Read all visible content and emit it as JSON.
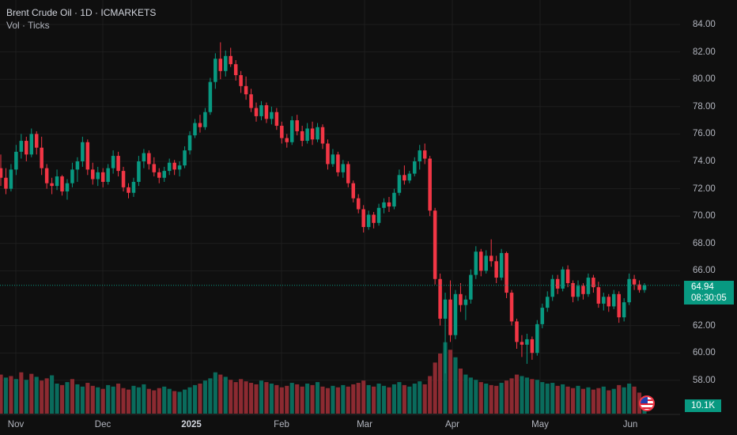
{
  "header": {
    "title": "Brent Crude Oil · 1D · ICMARKETS",
    "volume_label": "Vol · Ticks"
  },
  "price_axis": {
    "labels": [
      "84.00",
      "82.00",
      "80.00",
      "78.00",
      "76.00",
      "74.00",
      "72.00",
      "70.00",
      "68.00",
      "66.00",
      "62.00",
      "60.00",
      "58.00"
    ],
    "last_price": "64.94",
    "countdown": "08:30:05",
    "volume_last": "10.1K"
  },
  "time_axis": {
    "labels": [
      "Nov",
      "Dec",
      "2025",
      "Feb",
      "Mar",
      "Apr",
      "May",
      "Jun"
    ]
  },
  "colors": {
    "up": "#089981",
    "down": "#f23645",
    "background": "#0f0f0f",
    "grid": "#1e1e1e"
  },
  "chart_data": {
    "type": "candlestick",
    "symbol": "Brent Crude Oil",
    "interval": "1D",
    "exchange": "ICMARKETS",
    "ylim": [
      57.5,
      84.5
    ],
    "last_price": 64.94,
    "ohlc": [
      [
        73.5,
        74.5,
        72.2,
        72.8
      ],
      [
        72.8,
        73.5,
        71.6,
        72.0
      ],
      [
        72.0,
        73.8,
        71.8,
        73.4
      ],
      [
        73.4,
        75.2,
        73.0,
        74.7
      ],
      [
        74.7,
        76.0,
        74.2,
        75.5
      ],
      [
        75.5,
        75.8,
        74.0,
        74.5
      ],
      [
        74.5,
        76.4,
        74.3,
        76.0
      ],
      [
        76.0,
        76.2,
        74.5,
        75.0
      ],
      [
        75.0,
        75.8,
        73.0,
        73.5
      ],
      [
        73.5,
        73.8,
        72.0,
        72.4
      ],
      [
        72.4,
        72.8,
        71.6,
        72.2
      ],
      [
        72.2,
        73.4,
        71.9,
        72.9
      ],
      [
        72.9,
        73.0,
        71.5,
        71.8
      ],
      [
        71.8,
        72.7,
        71.2,
        72.4
      ],
      [
        72.4,
        73.9,
        72.1,
        73.4
      ],
      [
        73.4,
        74.3,
        72.5,
        74.0
      ],
      [
        74.0,
        75.8,
        73.6,
        75.4
      ],
      [
        75.4,
        75.6,
        73.0,
        73.4
      ],
      [
        73.4,
        73.9,
        72.3,
        72.7
      ],
      [
        72.7,
        73.6,
        72.2,
        73.2
      ],
      [
        73.2,
        73.5,
        72.1,
        72.5
      ],
      [
        72.5,
        73.8,
        72.3,
        73.5
      ],
      [
        73.5,
        74.8,
        73.1,
        74.4
      ],
      [
        74.4,
        74.7,
        72.9,
        73.3
      ],
      [
        73.3,
        73.6,
        71.8,
        72.1
      ],
      [
        72.1,
        72.4,
        71.3,
        71.7
      ],
      [
        71.7,
        72.8,
        71.4,
        72.5
      ],
      [
        72.5,
        74.4,
        72.2,
        74.0
      ],
      [
        74.0,
        74.9,
        73.5,
        74.6
      ],
      [
        74.6,
        74.8,
        73.4,
        73.8
      ],
      [
        73.8,
        74.3,
        72.9,
        73.2
      ],
      [
        73.2,
        73.5,
        72.4,
        72.8
      ],
      [
        72.8,
        73.6,
        72.5,
        73.3
      ],
      [
        73.3,
        74.2,
        73.0,
        73.9
      ],
      [
        73.9,
        74.1,
        73.0,
        73.4
      ],
      [
        73.4,
        74.0,
        72.9,
        73.7
      ],
      [
        73.7,
        75.1,
        73.5,
        74.8
      ],
      [
        74.8,
        76.2,
        74.5,
        75.9
      ],
      [
        75.9,
        77.1,
        75.7,
        76.8
      ],
      [
        76.8,
        77.4,
        76.1,
        76.5
      ],
      [
        76.5,
        77.9,
        76.3,
        77.6
      ],
      [
        77.6,
        80.1,
        77.4,
        79.8
      ],
      [
        79.8,
        81.9,
        79.3,
        81.5
      ],
      [
        81.5,
        82.7,
        80.0,
        80.6
      ],
      [
        80.6,
        82.1,
        80.2,
        81.7
      ],
      [
        81.7,
        82.3,
        80.9,
        81.1
      ],
      [
        81.1,
        81.4,
        79.9,
        80.3
      ],
      [
        80.3,
        80.6,
        79.0,
        79.5
      ],
      [
        79.5,
        80.2,
        78.5,
        78.9
      ],
      [
        78.9,
        79.3,
        77.6,
        77.9
      ],
      [
        77.9,
        78.3,
        76.9,
        77.3
      ],
      [
        77.3,
        78.4,
        77.0,
        78.1
      ],
      [
        78.1,
        78.3,
        76.8,
        77.1
      ],
      [
        77.1,
        78.0,
        76.7,
        77.6
      ],
      [
        77.6,
        77.9,
        76.3,
        76.6
      ],
      [
        76.6,
        76.9,
        75.3,
        75.7
      ],
      [
        75.7,
        76.0,
        75.0,
        75.4
      ],
      [
        75.4,
        77.3,
        75.2,
        77.0
      ],
      [
        77.0,
        77.4,
        75.9,
        76.2
      ],
      [
        76.2,
        76.6,
        75.1,
        75.5
      ],
      [
        75.5,
        76.8,
        75.3,
        76.4
      ],
      [
        76.4,
        76.9,
        75.2,
        75.6
      ],
      [
        75.6,
        76.8,
        75.4,
        76.5
      ],
      [
        76.5,
        76.7,
        74.9,
        75.3
      ],
      [
        75.3,
        75.6,
        73.4,
        73.8
      ],
      [
        73.8,
        74.9,
        73.6,
        74.5
      ],
      [
        74.5,
        74.7,
        72.9,
        73.2
      ],
      [
        73.2,
        74.1,
        72.8,
        73.8
      ],
      [
        73.8,
        74.0,
        72.1,
        72.4
      ],
      [
        72.4,
        72.6,
        71.0,
        71.3
      ],
      [
        71.3,
        71.6,
        70.2,
        70.5
      ],
      [
        70.5,
        70.8,
        68.8,
        69.2
      ],
      [
        69.2,
        70.4,
        69.0,
        70.1
      ],
      [
        70.1,
        70.3,
        69.1,
        69.5
      ],
      [
        69.5,
        70.9,
        69.3,
        70.6
      ],
      [
        70.6,
        71.3,
        70.2,
        71.0
      ],
      [
        71.0,
        71.4,
        70.3,
        70.7
      ],
      [
        70.7,
        72.0,
        70.5,
        71.7
      ],
      [
        71.7,
        73.4,
        71.5,
        73.0
      ],
      [
        73.0,
        73.7,
        72.3,
        72.6
      ],
      [
        72.6,
        73.3,
        72.4,
        73.1
      ],
      [
        73.1,
        74.3,
        72.9,
        74.0
      ],
      [
        74.0,
        75.2,
        73.4,
        74.8
      ],
      [
        74.8,
        75.3,
        73.8,
        74.2
      ],
      [
        74.2,
        74.4,
        70.0,
        70.4
      ],
      [
        70.4,
        70.6,
        65.0,
        65.4
      ],
      [
        65.4,
        65.8,
        62.0,
        62.5
      ],
      [
        62.5,
        64.4,
        58.5,
        63.9
      ],
      [
        63.9,
        65.3,
        60.8,
        61.3
      ],
      [
        61.3,
        64.6,
        61.0,
        64.3
      ],
      [
        64.3,
        65.1,
        63.0,
        63.5
      ],
      [
        63.5,
        64.2,
        62.4,
        63.9
      ],
      [
        63.9,
        66.1,
        63.6,
        65.7
      ],
      [
        65.7,
        67.8,
        65.4,
        67.4
      ],
      [
        67.4,
        67.6,
        65.6,
        66.0
      ],
      [
        66.0,
        67.5,
        65.8,
        67.1
      ],
      [
        67.1,
        68.3,
        66.3,
        66.7
      ],
      [
        66.7,
        67.1,
        65.1,
        65.5
      ],
      [
        65.5,
        67.6,
        65.3,
        67.3
      ],
      [
        67.3,
        67.4,
        64.0,
        64.4
      ],
      [
        64.4,
        64.6,
        62.0,
        62.3
      ],
      [
        62.3,
        62.5,
        60.3,
        60.8
      ],
      [
        60.8,
        61.3,
        59.7,
        60.6
      ],
      [
        60.6,
        61.4,
        59.2,
        61.0
      ],
      [
        61.0,
        61.2,
        59.5,
        60.0
      ],
      [
        60.0,
        62.4,
        59.8,
        62.1
      ],
      [
        62.1,
        63.6,
        61.8,
        63.3
      ],
      [
        63.3,
        64.5,
        63.0,
        64.1
      ],
      [
        64.1,
        65.7,
        63.8,
        65.4
      ],
      [
        65.4,
        65.7,
        64.3,
        64.7
      ],
      [
        64.7,
        66.3,
        64.5,
        66.1
      ],
      [
        66.1,
        66.4,
        64.8,
        65.1
      ],
      [
        65.1,
        65.3,
        63.7,
        64.1
      ],
      [
        64.1,
        65.3,
        63.8,
        64.9
      ],
      [
        64.9,
        65.1,
        63.9,
        64.3
      ],
      [
        64.3,
        65.8,
        64.1,
        65.5
      ],
      [
        65.5,
        65.7,
        64.4,
        64.8
      ],
      [
        64.8,
        65.2,
        63.3,
        63.6
      ],
      [
        63.6,
        64.4,
        63.1,
        64.1
      ],
      [
        64.1,
        64.3,
        63.0,
        63.4
      ],
      [
        63.4,
        64.6,
        63.2,
        64.3
      ],
      [
        64.3,
        64.5,
        62.2,
        62.6
      ],
      [
        62.6,
        64.0,
        62.3,
        63.7
      ],
      [
        63.7,
        65.8,
        63.5,
        65.4
      ],
      [
        65.4,
        65.7,
        64.6,
        65.0
      ],
      [
        65.0,
        65.3,
        64.4,
        64.6
      ],
      [
        64.6,
        65.1,
        64.4,
        64.94
      ]
    ],
    "volume": [
      [
        52,
        "down"
      ],
      [
        48,
        "up"
      ],
      [
        50,
        "down"
      ],
      [
        46,
        "up"
      ],
      [
        55,
        "down"
      ],
      [
        45,
        "up"
      ],
      [
        53,
        "down"
      ],
      [
        49,
        "up"
      ],
      [
        44,
        "down"
      ],
      [
        47,
        "down"
      ],
      [
        51,
        "up"
      ],
      [
        40,
        "up"
      ],
      [
        38,
        "down"
      ],
      [
        42,
        "up"
      ],
      [
        46,
        "down"
      ],
      [
        39,
        "up"
      ],
      [
        36,
        "up"
      ],
      [
        41,
        "down"
      ],
      [
        37,
        "down"
      ],
      [
        35,
        "up"
      ],
      [
        33,
        "down"
      ],
      [
        38,
        "up"
      ],
      [
        36,
        "up"
      ],
      [
        40,
        "down"
      ],
      [
        34,
        "down"
      ],
      [
        32,
        "down"
      ],
      [
        37,
        "up"
      ],
      [
        35,
        "up"
      ],
      [
        39,
        "up"
      ],
      [
        33,
        "down"
      ],
      [
        31,
        "down"
      ],
      [
        34,
        "down"
      ],
      [
        36,
        "up"
      ],
      [
        33,
        "up"
      ],
      [
        30,
        "down"
      ],
      [
        29,
        "up"
      ],
      [
        32,
        "up"
      ],
      [
        35,
        "up"
      ],
      [
        38,
        "up"
      ],
      [
        40,
        "down"
      ],
      [
        44,
        "up"
      ],
      [
        47,
        "up"
      ],
      [
        55,
        "up"
      ],
      [
        52,
        "down"
      ],
      [
        49,
        "up"
      ],
      [
        45,
        "down"
      ],
      [
        42,
        "down"
      ],
      [
        46,
        "down"
      ],
      [
        43,
        "down"
      ],
      [
        41,
        "down"
      ],
      [
        39,
        "down"
      ],
      [
        44,
        "up"
      ],
      [
        42,
        "down"
      ],
      [
        40,
        "up"
      ],
      [
        38,
        "down"
      ],
      [
        35,
        "down"
      ],
      [
        37,
        "down"
      ],
      [
        41,
        "up"
      ],
      [
        39,
        "down"
      ],
      [
        36,
        "down"
      ],
      [
        40,
        "up"
      ],
      [
        38,
        "down"
      ],
      [
        42,
        "up"
      ],
      [
        36,
        "down"
      ],
      [
        34,
        "down"
      ],
      [
        37,
        "up"
      ],
      [
        35,
        "down"
      ],
      [
        38,
        "up"
      ],
      [
        36,
        "down"
      ],
      [
        39,
        "down"
      ],
      [
        41,
        "down"
      ],
      [
        44,
        "down"
      ],
      [
        38,
        "up"
      ],
      [
        36,
        "down"
      ],
      [
        40,
        "up"
      ],
      [
        37,
        "up"
      ],
      [
        35,
        "down"
      ],
      [
        39,
        "up"
      ],
      [
        42,
        "up"
      ],
      [
        38,
        "down"
      ],
      [
        36,
        "up"
      ],
      [
        40,
        "up"
      ],
      [
        43,
        "up"
      ],
      [
        39,
        "down"
      ],
      [
        50,
        "down"
      ],
      [
        68,
        "down"
      ],
      [
        80,
        "down"
      ],
      [
        95,
        "up"
      ],
      [
        85,
        "down"
      ],
      [
        75,
        "up"
      ],
      [
        60,
        "down"
      ],
      [
        52,
        "up"
      ],
      [
        48,
        "up"
      ],
      [
        45,
        "up"
      ],
      [
        42,
        "down"
      ],
      [
        40,
        "up"
      ],
      [
        38,
        "down"
      ],
      [
        37,
        "down"
      ],
      [
        41,
        "up"
      ],
      [
        44,
        "down"
      ],
      [
        47,
        "down"
      ],
      [
        52,
        "down"
      ],
      [
        50,
        "up"
      ],
      [
        48,
        "up"
      ],
      [
        46,
        "down"
      ],
      [
        45,
        "up"
      ],
      [
        42,
        "up"
      ],
      [
        40,
        "up"
      ],
      [
        41,
        "up"
      ],
      [
        37,
        "down"
      ],
      [
        39,
        "up"
      ],
      [
        36,
        "down"
      ],
      [
        34,
        "down"
      ],
      [
        37,
        "up"
      ],
      [
        33,
        "down"
      ],
      [
        35,
        "up"
      ],
      [
        32,
        "down"
      ],
      [
        34,
        "down"
      ],
      [
        36,
        "up"
      ],
      [
        31,
        "down"
      ],
      [
        33,
        "up"
      ],
      [
        38,
        "down"
      ],
      [
        35,
        "up"
      ],
      [
        40,
        "up"
      ],
      [
        36,
        "down"
      ],
      [
        28,
        "down"
      ],
      [
        22,
        "up"
      ]
    ]
  }
}
